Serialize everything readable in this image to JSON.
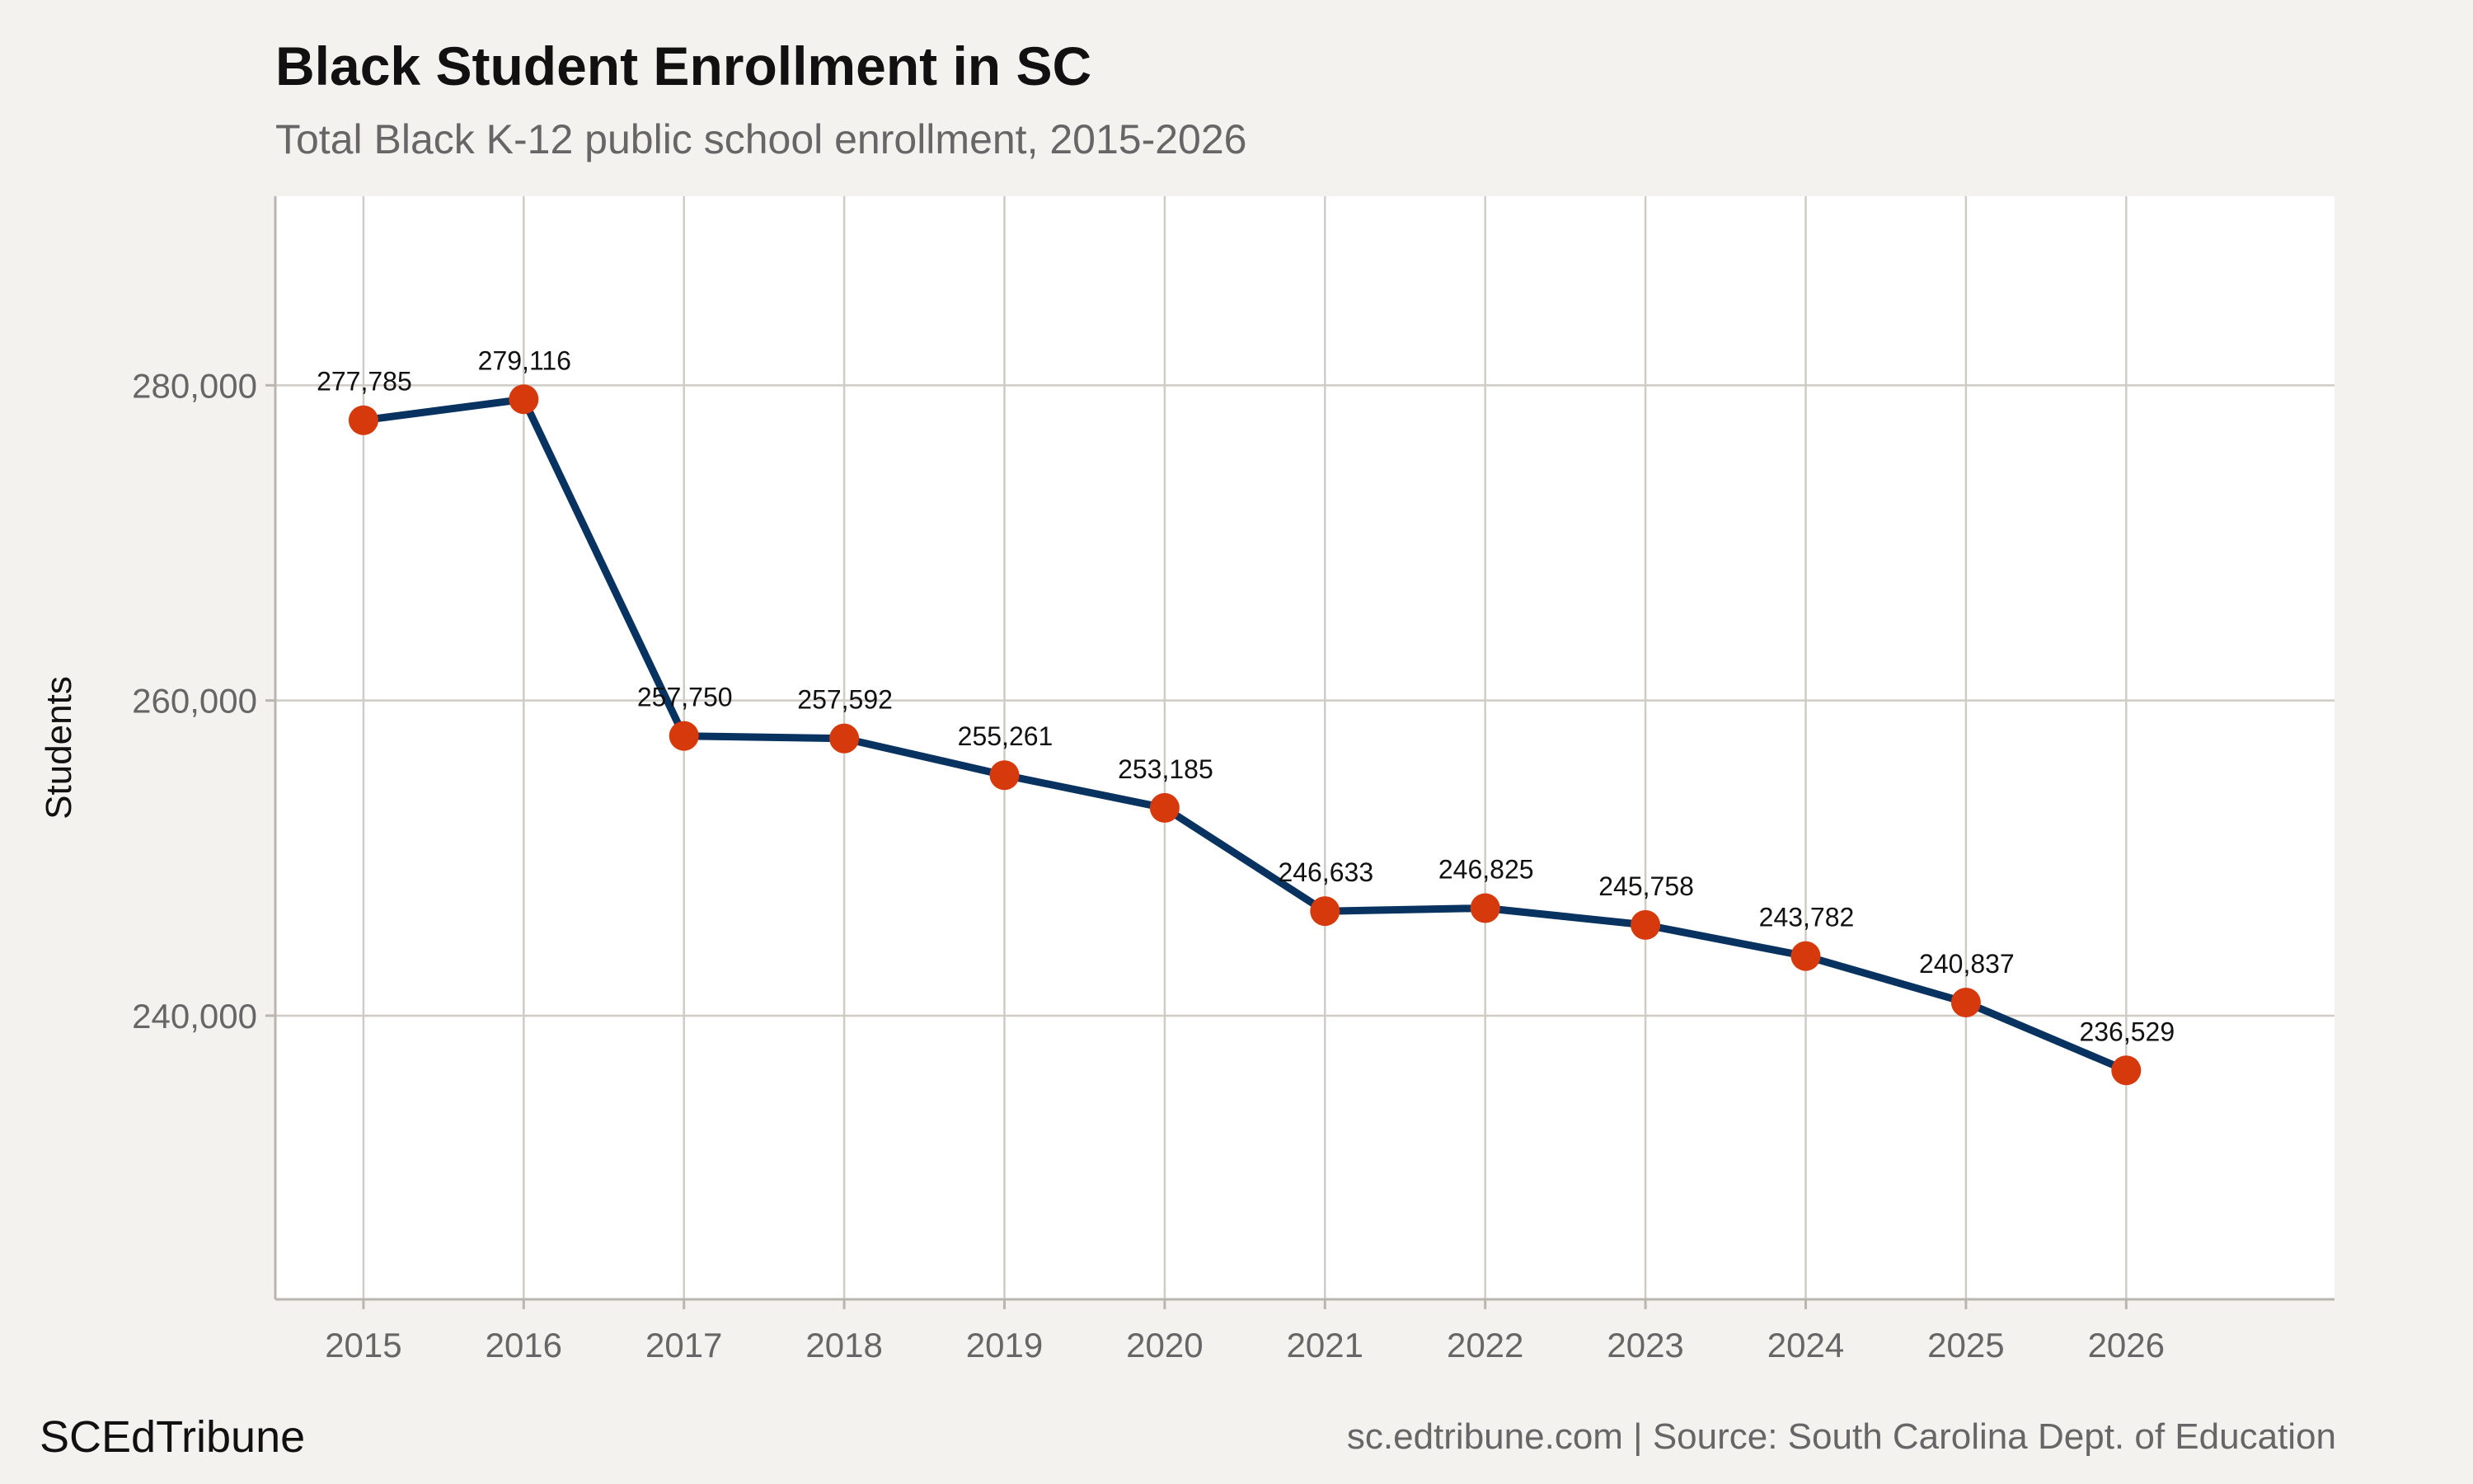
{
  "chart_data": {
    "type": "line",
    "title": "Black Student Enrollment in SC",
    "subtitle": "Total Black K-12 public school enrollment, 2015-2026",
    "xlabel": "",
    "ylabel": "Students",
    "x": [
      2015,
      2016,
      2017,
      2018,
      2019,
      2020,
      2021,
      2022,
      2023,
      2024,
      2025,
      2026
    ],
    "values": [
      277785,
      279116,
      257750,
      257592,
      255261,
      253185,
      246633,
      246825,
      245758,
      243782,
      240837,
      236529
    ],
    "data_labels": [
      "277,785",
      "279,116",
      "257,750",
      "257,592",
      "255,261",
      "253,185",
      "246,633",
      "246,825",
      "245,758",
      "243,782",
      "240,837",
      "236,529"
    ],
    "ylim": [
      222000,
      292000
    ],
    "xlim": [
      2014.45,
      2027.3
    ],
    "yticks": [
      240000,
      260000,
      280000
    ],
    "ytick_labels": [
      "240,000",
      "260,000",
      "280,000"
    ],
    "xtick_labels": [
      "2015",
      "2016",
      "2017",
      "2018",
      "2019",
      "2020",
      "2021",
      "2022",
      "2023",
      "2024",
      "2025",
      "2026"
    ],
    "grid": true,
    "legend": "none",
    "line_color": "#08325f",
    "marker_color": "#d63a0c"
  },
  "footer": {
    "brand": "SCEdTribune",
    "source": "sc.edtribune.com | Source: South Carolina Dept. of Education"
  }
}
